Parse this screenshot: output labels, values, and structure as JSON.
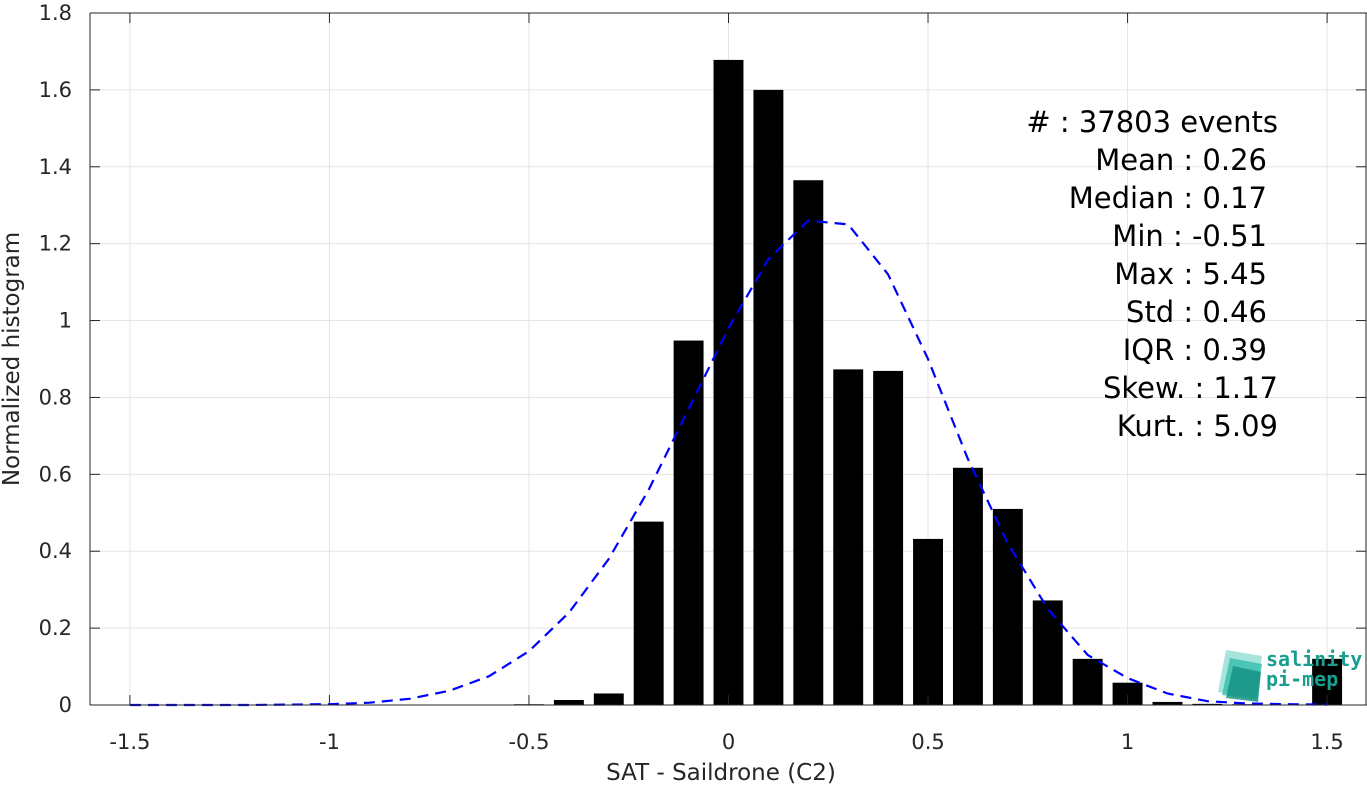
{
  "colors": {
    "bar": "#000000",
    "fit_line": "#0000ff",
    "grid": "#e5e5e5",
    "axis": "#262626",
    "logo": "#1a9e8f"
  },
  "chart_data": {
    "type": "bar",
    "xlabel": "SAT - Saildrone (C2)",
    "ylabel": "Normalized histogram",
    "xlim": [
      -1.6,
      1.6
    ],
    "ylim": [
      0,
      1.8
    ],
    "grid": true,
    "x_ticks": [
      -1.5,
      -1,
      -0.5,
      0,
      0.5,
      1,
      1.5
    ],
    "x_tick_labels": [
      "-1.5",
      "-1",
      "-0.5",
      "0",
      "0.5",
      "1",
      "1.5"
    ],
    "y_ticks": [
      0,
      0.2,
      0.4,
      0.6,
      0.8,
      1,
      1.2,
      1.4,
      1.6,
      1.8
    ],
    "y_tick_labels": [
      "0",
      "0.2",
      "0.4",
      "0.6",
      "0.8",
      "1",
      "1.2",
      "1.4",
      "1.6",
      "1.8"
    ],
    "bar_width": 0.075,
    "series": [
      {
        "type": "bar",
        "x": [
          -0.5,
          -0.4,
          -0.3,
          -0.2,
          -0.1,
          0.0,
          0.1,
          0.2,
          0.3,
          0.4,
          0.5,
          0.6,
          0.7,
          0.8,
          0.9,
          1.0,
          1.1,
          1.2,
          1.3,
          1.4,
          1.5
        ],
        "values": [
          0.002,
          0.013,
          0.03,
          0.477,
          0.948,
          1.678,
          1.6,
          1.365,
          0.873,
          0.869,
          0.432,
          0.617,
          0.51,
          0.272,
          0.12,
          0.058,
          0.008,
          0.003,
          0.002,
          0.001,
          0.12
        ]
      },
      {
        "type": "line",
        "style": "dashed",
        "x": [
          -1.5,
          -1.4,
          -1.3,
          -1.2,
          -1.1,
          -1.0,
          -0.9,
          -0.8,
          -0.7,
          -0.6,
          -0.5,
          -0.4,
          -0.3,
          -0.2,
          -0.1,
          0.0,
          0.1,
          0.2,
          0.3,
          0.4,
          0.5,
          0.6,
          0.7,
          0.8,
          0.9,
          1.0,
          1.1,
          1.2,
          1.3,
          1.4,
          1.5
        ],
        "values": [
          0.0,
          0.0,
          0.0,
          0.0,
          0.001,
          0.002,
          0.006,
          0.016,
          0.037,
          0.075,
          0.14,
          0.24,
          0.38,
          0.56,
          0.77,
          0.98,
          1.16,
          1.26,
          1.25,
          1.12,
          0.9,
          0.64,
          0.42,
          0.25,
          0.13,
          0.07,
          0.03,
          0.01,
          0.004,
          0.002,
          0.001
        ]
      }
    ],
    "annotations": [
      "#  : 37803 events",
      "Mean : 0.26",
      "Median : 0.17",
      "Min : -0.51",
      "Max : 5.45",
      "Std : 0.46",
      "IQR : 0.39",
      "Skew. : 1.17",
      "Kurt. : 5.09"
    ]
  },
  "logo": {
    "line1": "salinity",
    "line2": "pi-mep"
  }
}
